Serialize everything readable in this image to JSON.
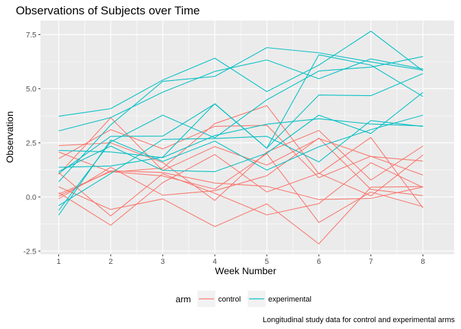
{
  "chart_data": {
    "type": "line",
    "title": "Observations of Subjects over Time",
    "xlabel": "Week Number",
    "ylabel": "Observation",
    "caption": "Longitudinal study data for control and experimental arms",
    "x": [
      1,
      2,
      3,
      4,
      5,
      6,
      7,
      8
    ],
    "x_ticks": [
      "1",
      "2",
      "3",
      "4",
      "5",
      "6",
      "7",
      "8"
    ],
    "y_ticks": [
      -2.5,
      0,
      2.5,
      5,
      7.5
    ],
    "y_tick_labels": [
      "-2.5",
      "0.0",
      "2.5",
      "5.0",
      "7.5"
    ],
    "xlim": [
      0.65,
      8.6
    ],
    "ylim": [
      -2.65,
      8.15
    ],
    "grid": true,
    "legend": {
      "title": "arm",
      "position": "bottom",
      "entries": [
        {
          "label": "control",
          "color": "#F8766D"
        },
        {
          "label": "experimental",
          "color": "#00BFC4"
        }
      ]
    },
    "colors": {
      "control": "#F8766D",
      "experimental": "#00BFC4",
      "panel": "#EBEBEB",
      "grid": "#FFFFFF"
    },
    "series": [
      {
        "arm": "control",
        "values": [
          0.2,
          -1.31,
          0.66,
          1.96,
          0.23,
          1.09,
          0.05,
          1.94
        ]
      },
      {
        "arm": "control",
        "values": [
          1.13,
          -0.88,
          1.07,
          0.17,
          -0.83,
          -0.31,
          1.58,
          0.44
        ]
      },
      {
        "arm": "control",
        "values": [
          1.77,
          3.11,
          2.22,
          3.26,
          3.31,
          0.89,
          1.88,
          1.01
        ]
      },
      {
        "arm": "control",
        "values": [
          1.04,
          3.66,
          1.22,
          2.33,
          1.47,
          2.7,
          1.87,
          1.66
        ]
      },
      {
        "arm": "control",
        "values": [
          0.47,
          -0.58,
          -0.09,
          -1.37,
          -0.32,
          -2.17,
          0.45,
          0.48
        ]
      },
      {
        "arm": "control",
        "values": [
          2.37,
          2.5,
          1.59,
          -0.16,
          2.08,
          3.07,
          0.78,
          2.35
        ]
      },
      {
        "arm": "control",
        "values": [
          0.03,
          1.21,
          1.13,
          0.64,
          0.49,
          -0.12,
          -0.07,
          0.46
        ]
      },
      {
        "arm": "control",
        "values": [
          -0.09,
          1.37,
          0.08,
          0.29,
          0.98,
          2.72,
          0.35,
          0.06
        ]
      },
      {
        "arm": "control",
        "values": [
          2.08,
          1.15,
          1.33,
          3.39,
          4.22,
          1.07,
          2.75,
          -0.51
        ]
      },
      {
        "arm": "control",
        "values": [
          0.13,
          1.17,
          0.97,
          0.36,
          2.0,
          -1.18,
          0.23,
          -0.45
        ]
      },
      {
        "arm": "experimental",
        "values": [
          3.05,
          3.67,
          4.84,
          5.8,
          6.33,
          5.46,
          6.38,
          5.91
        ]
      },
      {
        "arm": "experimental",
        "values": [
          -0.84,
          2.63,
          1.64,
          2.58,
          1.24,
          2.32,
          3.11,
          3.78
        ]
      },
      {
        "arm": "experimental",
        "values": [
          2.15,
          2.08,
          1.82,
          2.84,
          3.36,
          3.61,
          3.37,
          3.28
        ]
      },
      {
        "arm": "experimental",
        "values": [
          -0.62,
          2.54,
          3.78,
          2.73,
          4.49,
          5.82,
          6.0,
          6.49
        ]
      },
      {
        "arm": "experimental",
        "values": [
          0.7,
          3.33,
          5.34,
          5.57,
          6.9,
          6.66,
          6.24,
          5.86
        ]
      },
      {
        "arm": "experimental",
        "values": [
          3.73,
          4.08,
          5.4,
          6.41,
          4.87,
          6.09,
          7.66,
          5.83
        ]
      },
      {
        "arm": "experimental",
        "values": [
          1.18,
          2.35,
          1.23,
          1.17,
          2.02,
          3.78,
          2.93,
          4.83
        ]
      },
      {
        "arm": "experimental",
        "values": [
          1.37,
          1.43,
          1.84,
          4.31,
          2.25,
          6.57,
          6.09,
          4.64
        ]
      },
      {
        "arm": "experimental",
        "values": [
          -0.4,
          1.08,
          2.66,
          2.7,
          2.8,
          1.62,
          3.53,
          3.26
        ]
      },
      {
        "arm": "experimental",
        "values": [
          1.09,
          2.8,
          2.81,
          4.3,
          2.25,
          4.71,
          4.68,
          5.7
        ]
      }
    ]
  }
}
